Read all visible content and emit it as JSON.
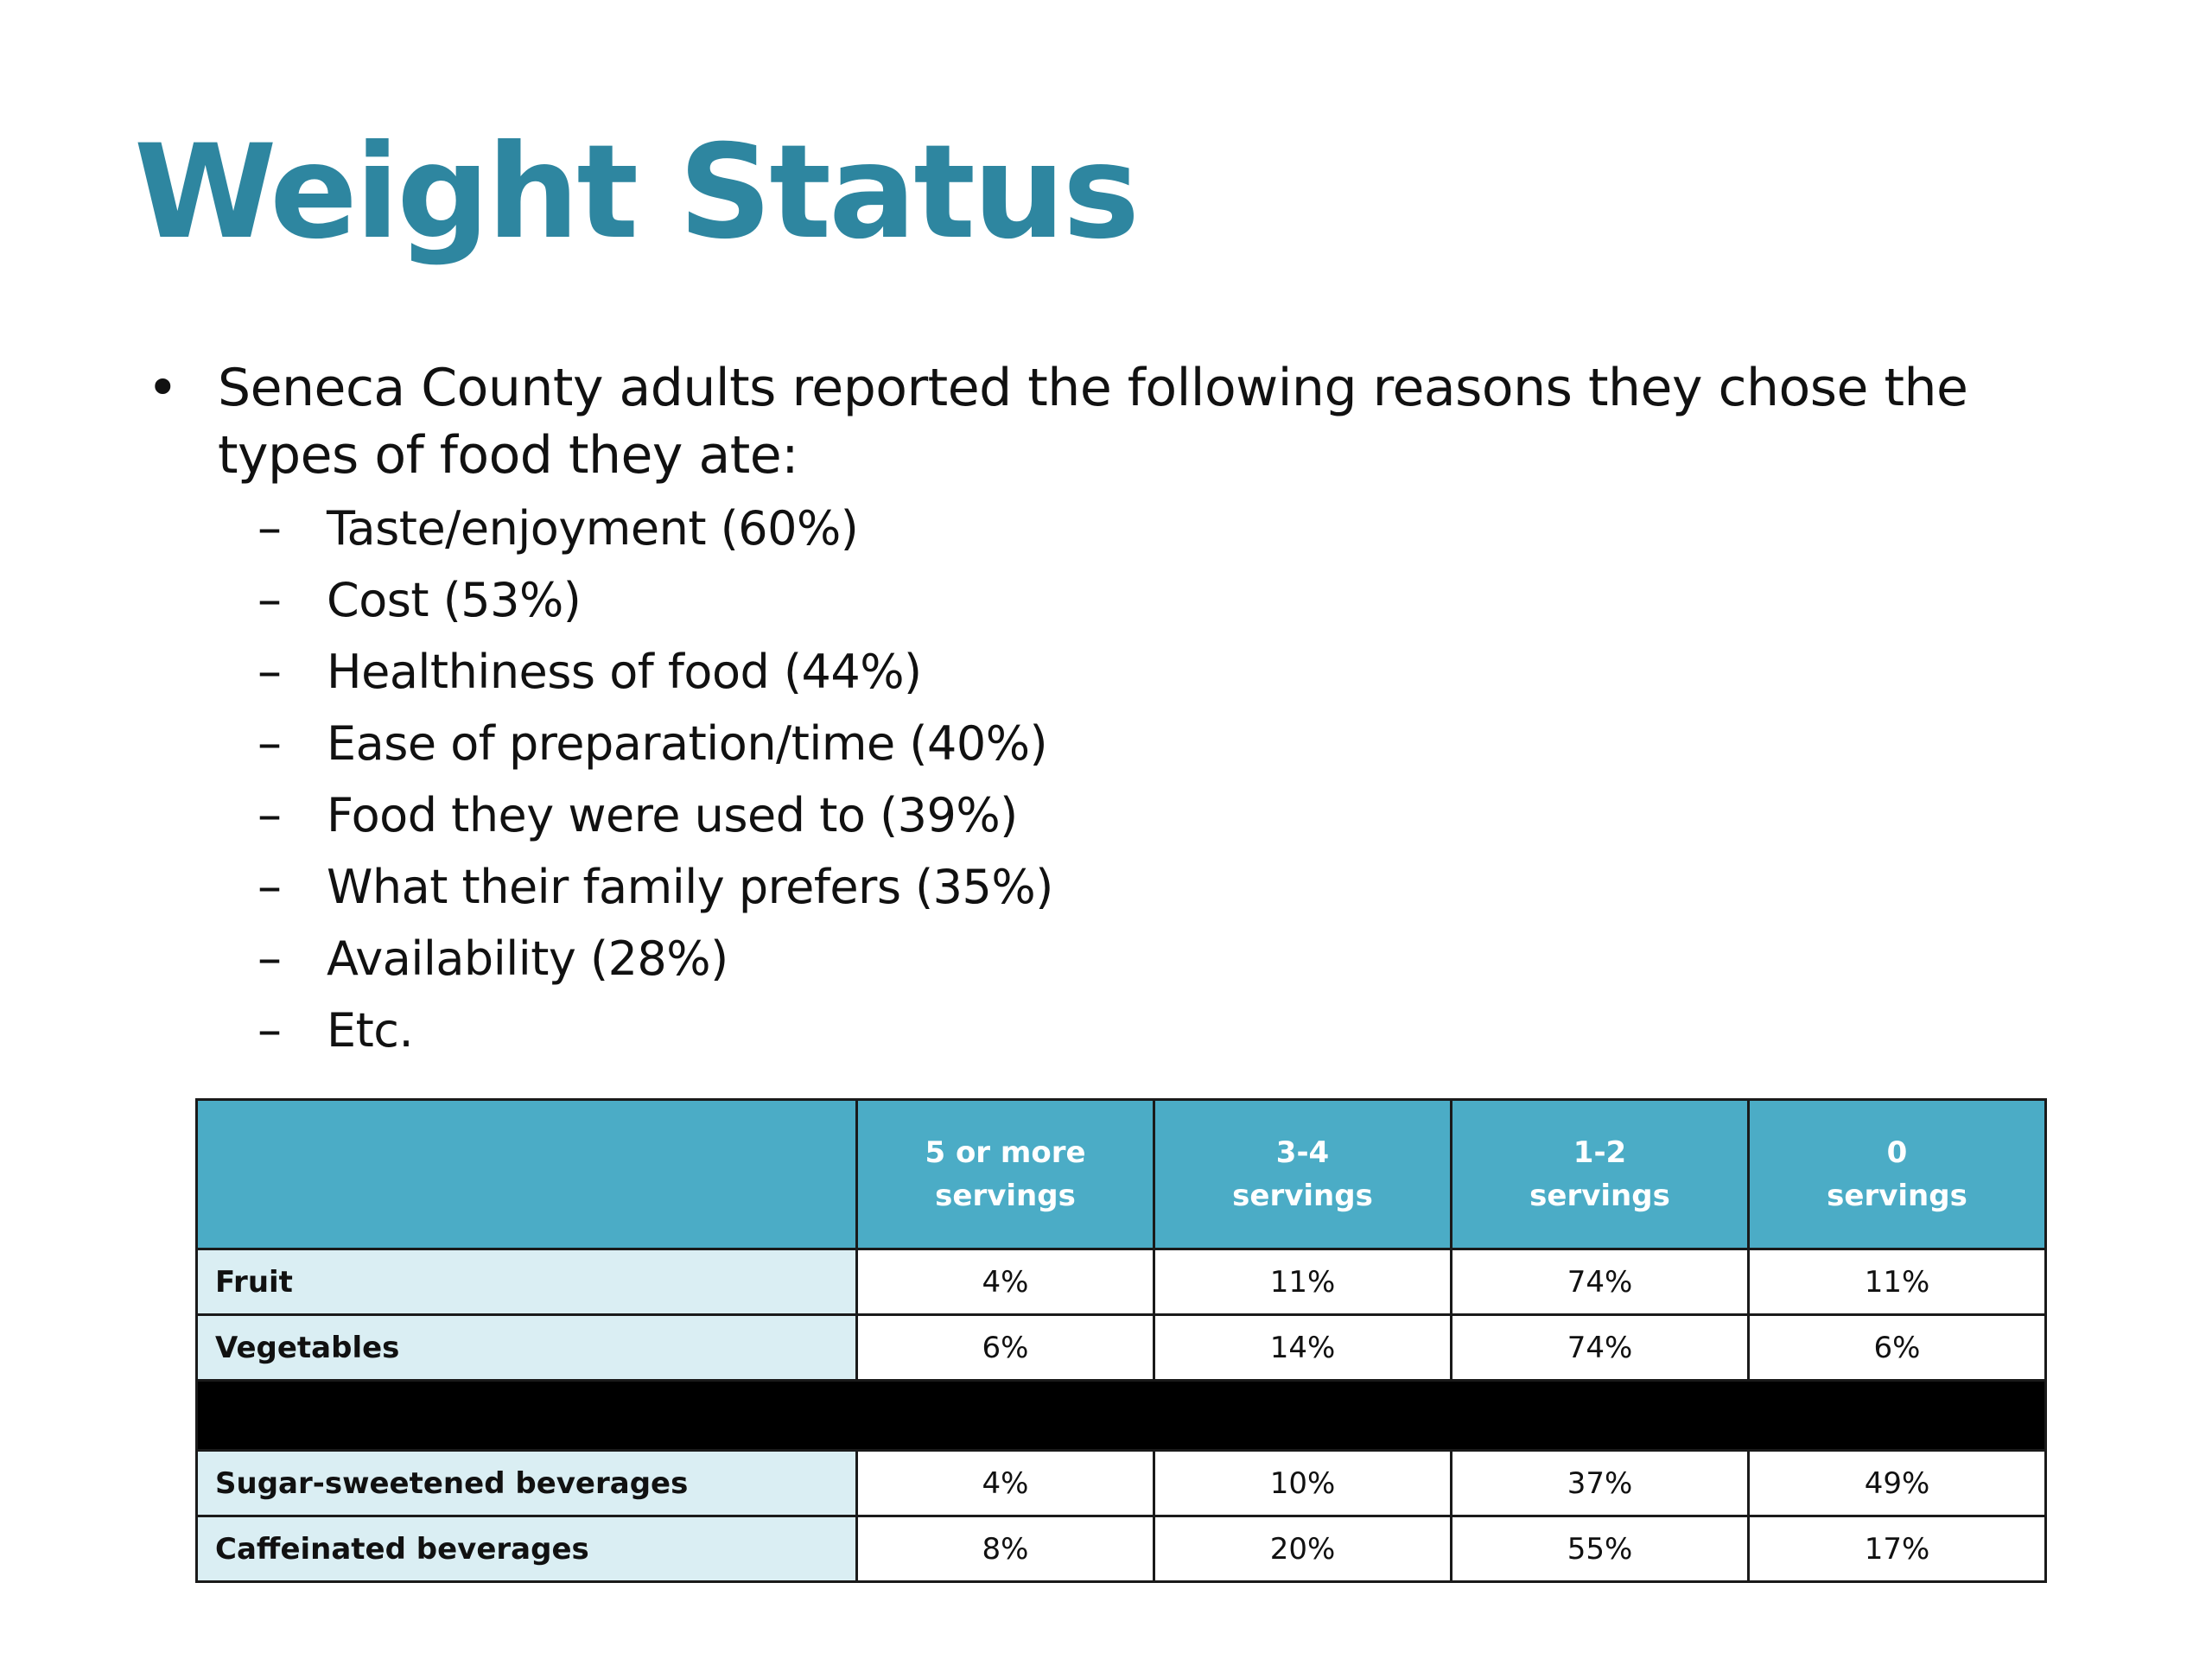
{
  "title": "Weight Status",
  "bullet": {
    "text": "Seneca County adults reported the following reasons they chose the types of food they ate:",
    "sub_items": [
      "Taste/enjoyment (60%)",
      "Cost (53%)",
      "Healthiness of food (44%)",
      "Ease of preparation/time (40%)",
      "Food they were used to (39%)",
      "What their family prefers (35%)",
      "Availability (28%)",
      "Etc."
    ]
  },
  "table": {
    "header": {
      "col1": "",
      "col2": [
        "5 or more",
        "servings"
      ],
      "col3": [
        "3-4",
        "servings"
      ],
      "col4": [
        "1-2",
        "servings"
      ],
      "col5": [
        "0",
        "servings"
      ]
    },
    "rows": [
      {
        "label": "Fruit",
        "values": [
          "4%",
          "11%",
          "74%",
          "11%"
        ]
      },
      {
        "label": "Vegetables",
        "values": [
          "6%",
          "14%",
          "74%",
          "6%"
        ]
      },
      {
        "label": "Sugar-sweetened beverages",
        "values": [
          "4%",
          "10%",
          "37%",
          "49%"
        ]
      },
      {
        "label": "Caffeinated beverages",
        "values": [
          "8%",
          "20%",
          "55%",
          "17%"
        ]
      }
    ]
  },
  "colors": {
    "title": "#2E86A0",
    "header_bg": "#4BACC6",
    "label_bg": "#DAEEF3",
    "divider": "#000000"
  }
}
